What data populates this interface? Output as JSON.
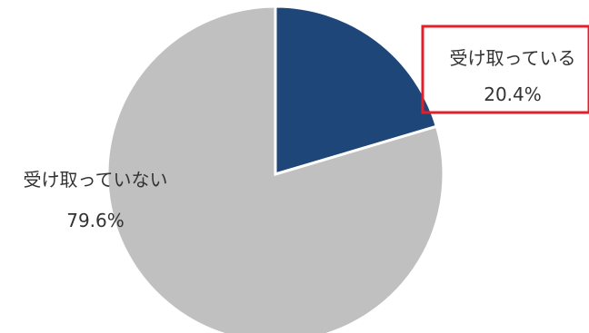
{
  "chart_data": {
    "type": "pie",
    "categories": [
      "受け取っている",
      "受け取っていない"
    ],
    "values": [
      20.4,
      79.6
    ],
    "value_labels": [
      "20.4%",
      "79.6%"
    ],
    "colors": [
      "#1f4678",
      "#c0c0c0"
    ],
    "start": "12 o'clock",
    "direction": "clockwise",
    "highlight": {
      "category": "受け取っている",
      "box_color": "#e0202a"
    },
    "legend": "none"
  }
}
